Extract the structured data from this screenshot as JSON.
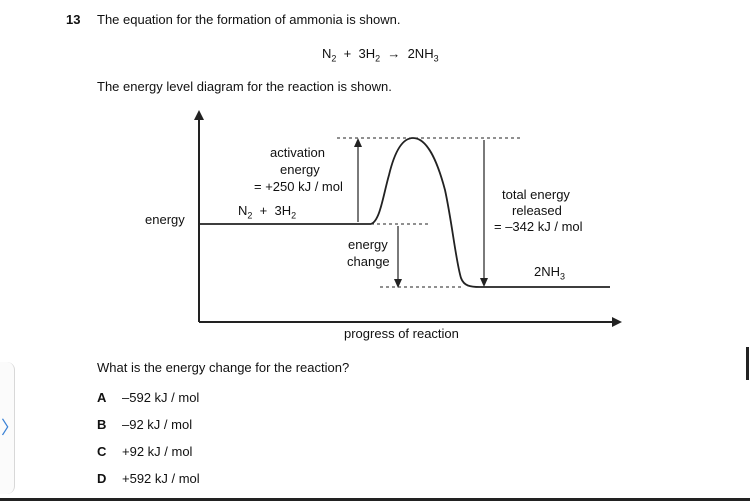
{
  "question": {
    "number": "13",
    "stem": "The equation for the formation of ammonia is shown.",
    "equation": {
      "reactant1": "N",
      "reactant1_sub": "2",
      "plus": "+",
      "reactant2": "3H",
      "reactant2_sub": "2",
      "arrow": "→",
      "product": "2NH",
      "product_sub": "3"
    },
    "diagram_intro": "The energy level diagram for the reaction is shown.",
    "prompt": "What is the energy change for the reaction?"
  },
  "diagram": {
    "y_axis_label": "energy",
    "x_axis_label": "progress of reaction",
    "reactants_label": "N",
    "reactants_sub1": "2",
    "reactants_plus": "+",
    "reactants_label2": "3H",
    "reactants_sub2": "2",
    "product_label": "2NH",
    "product_sub": "3",
    "activation_line1": "activation",
    "activation_line2": "energy",
    "activation_line3": "= +250 kJ / mol",
    "energy_change_line1": "energy",
    "energy_change_line2": "change",
    "total_line1": "total energy",
    "total_line2": "released",
    "total_line3": "= –342 kJ / mol"
  },
  "options": [
    {
      "letter": "A",
      "text": "–592 kJ / mol"
    },
    {
      "letter": "B",
      "text": "–92 kJ / mol"
    },
    {
      "letter": "C",
      "text": "+92 kJ / mol"
    },
    {
      "letter": "D",
      "text": "+592 kJ / mol"
    }
  ],
  "colors": {
    "text": "#111111",
    "line": "#222222",
    "accent": "#3b82d6"
  },
  "icons": {
    "left_tab": "chevron-right-icon"
  }
}
